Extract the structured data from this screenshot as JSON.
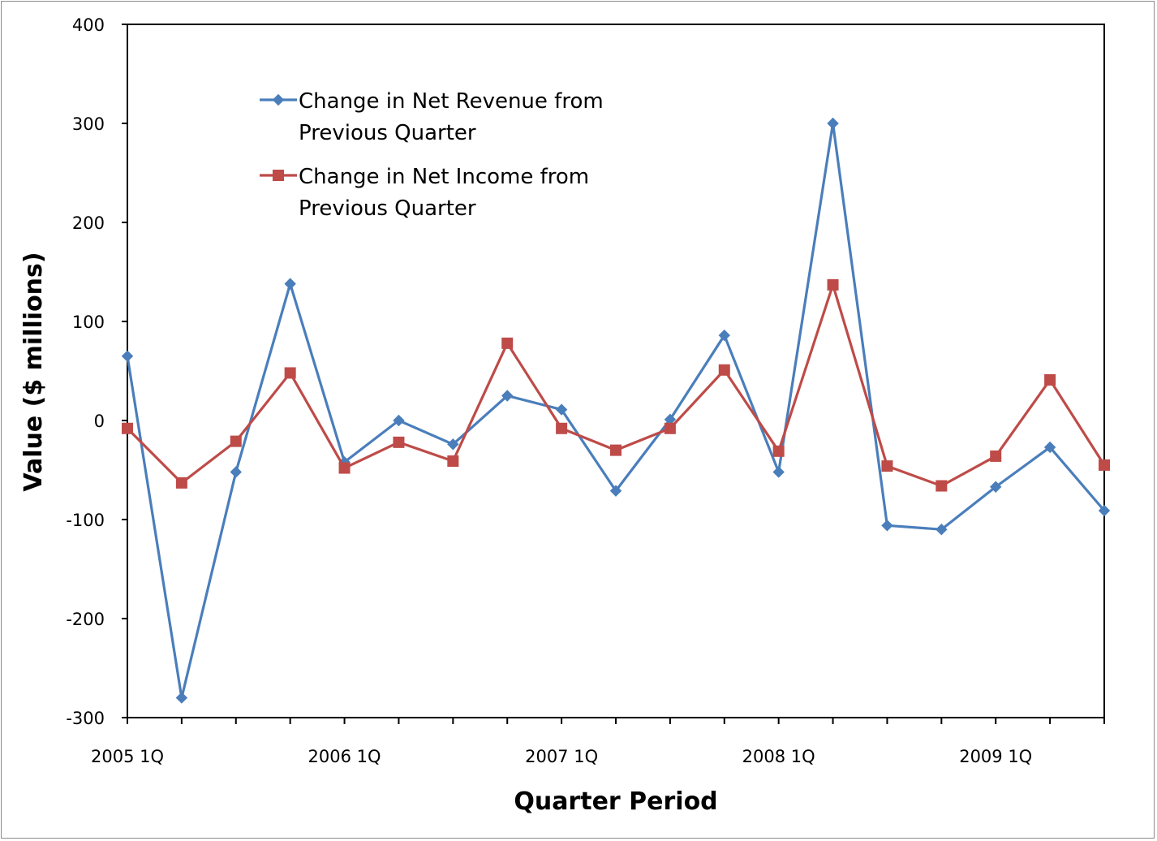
{
  "chart_data": {
    "type": "line",
    "x": [
      "2005 1Q",
      "2005 2Q",
      "2005 3Q",
      "2005 4Q",
      "2006 1Q",
      "2006 2Q",
      "2006 3Q",
      "2006 4Q",
      "2007 1Q",
      "2007 2Q",
      "2007 3Q",
      "2007 4Q",
      "2008 1Q",
      "2008 2Q",
      "2008 3Q",
      "2008 4Q",
      "2009 1Q",
      "2009 2Q",
      "2009 3Q"
    ],
    "tick_labels": [
      "2005 1Q",
      "2006 1Q",
      "2007 1Q",
      "2008 1Q",
      "2009 1Q"
    ],
    "tick_label_indices": [
      0,
      4,
      8,
      12,
      16
    ],
    "series": [
      {
        "name": "Change in Net Revenue from Previous Quarter",
        "name_lines": [
          "Change in Net Revenue from",
          "Previous Quarter"
        ],
        "color": "#4a7ebb",
        "marker": "diamond",
        "values": [
          65,
          -280,
          -52,
          138,
          -42,
          0,
          -24,
          25,
          11,
          -71,
          1,
          86,
          -52,
          300,
          -106,
          -110,
          -67,
          -27,
          -91
        ]
      },
      {
        "name": "Change in Net Income from Previous Quarter",
        "name_lines": [
          "Change in Net Income from",
          "Previous Quarter"
        ],
        "color": "#be4b48",
        "marker": "square",
        "values": [
          -8,
          -63,
          -21,
          48,
          -48,
          -22,
          -41,
          78,
          -8,
          -30,
          -8,
          51,
          -31,
          137,
          -46,
          -66,
          -36,
          41,
          -45
        ]
      }
    ],
    "xlabel": "Quarter Period",
    "ylabel": "Value ($ millions)",
    "ylim": [
      -300,
      400
    ],
    "yticks": [
      -300,
      -200,
      -100,
      0,
      100,
      200,
      300,
      400
    ],
    "grid": false,
    "legend_position": "top-left"
  }
}
